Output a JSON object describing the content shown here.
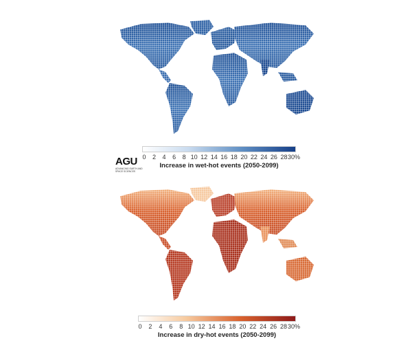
{
  "wet_panel": {
    "colorbar_title": "Increase in wet-hot events (2050-2099)",
    "ticks": [
      "0",
      "2",
      "4",
      "6",
      "8",
      "10",
      "12",
      "14",
      "16",
      "18",
      "20",
      "22",
      "24",
      "26",
      "28",
      "30%"
    ],
    "colors": [
      "#ffffff",
      "#c9dbef",
      "#5f8fc4",
      "#163f88"
    ]
  },
  "dry_panel": {
    "colorbar_title": "Increase in dry-hot events (2050-2099)",
    "ticks": [
      "0",
      "2",
      "4",
      "6",
      "8",
      "10",
      "12",
      "14",
      "16",
      "18",
      "20",
      "22",
      "24",
      "26",
      "28",
      "30%"
    ],
    "colors": [
      "#ffffff",
      "#f7cba0",
      "#d9622e",
      "#8e1a1a"
    ]
  },
  "logo": {
    "mark": "AGU",
    "tagline": "ADVANCING EARTH AND SPACE SCIENCES"
  }
}
